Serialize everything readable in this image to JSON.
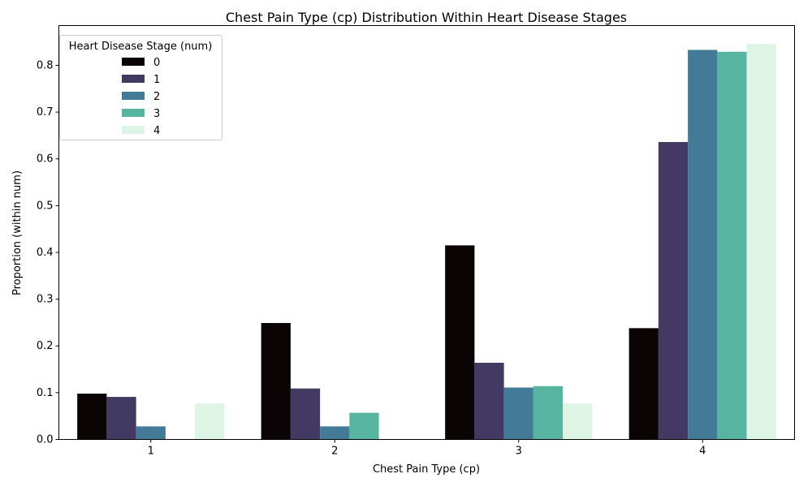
{
  "chart_data": {
    "type": "bar",
    "title": "Chest Pain Type (cp) Distribution Within Heart Disease Stages",
    "xlabel": "Chest Pain Type (cp)",
    "ylabel": "Proportion (within num)",
    "categories": [
      "1",
      "2",
      "3",
      "4"
    ],
    "ylim": [
      0,
      0.885
    ],
    "yticks": [
      "0.0",
      "0.1",
      "0.2",
      "0.3",
      "0.4",
      "0.5",
      "0.6",
      "0.7",
      "0.8"
    ],
    "grid": false,
    "legend": {
      "title": "Heart Disease Stage (num)",
      "placement": "top-left"
    },
    "series": [
      {
        "name": "0",
        "color": "#0b0405",
        "values": [
          0.098,
          0.249,
          0.415,
          0.238
        ]
      },
      {
        "name": "1",
        "color": "#423a62",
        "values": [
          0.091,
          0.109,
          0.164,
          0.636
        ]
      },
      {
        "name": "2",
        "color": "#437a97",
        "values": [
          0.028,
          0.028,
          0.111,
          0.833
        ]
      },
      {
        "name": "3",
        "color": "#57b4a1",
        "values": [
          0.0,
          0.057,
          0.114,
          0.829
        ]
      },
      {
        "name": "4",
        "color": "#def4e5",
        "values": [
          0.077,
          0.0,
          0.077,
          0.846
        ]
      }
    ]
  }
}
